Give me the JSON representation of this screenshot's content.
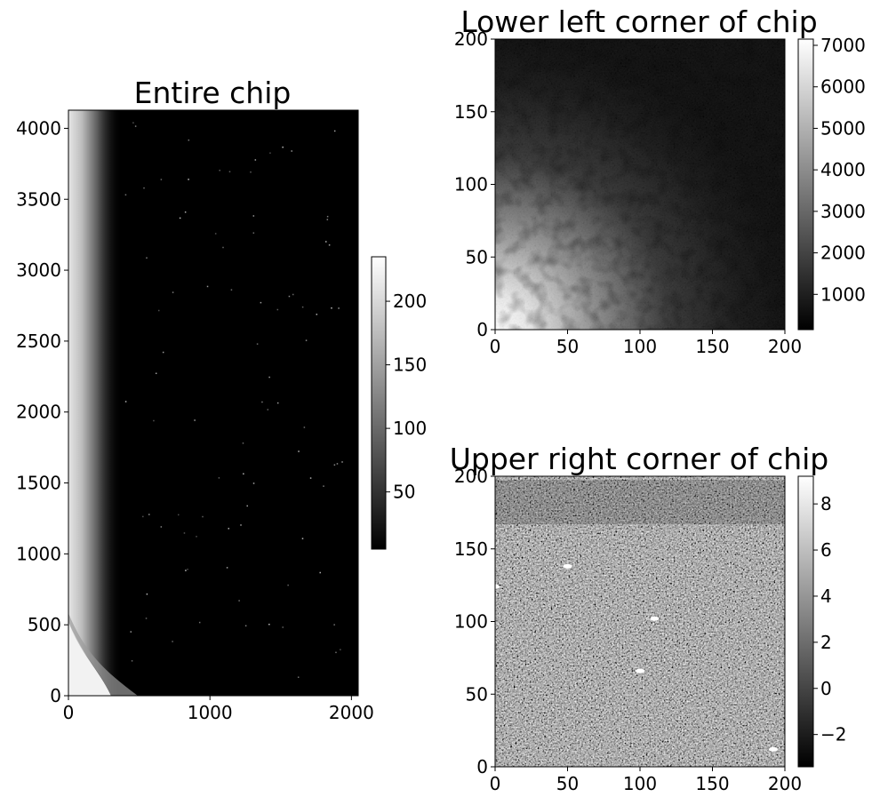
{
  "chart_data": [
    {
      "type": "heatmap",
      "title": "Entire chip",
      "colormap": "gray",
      "xlim": [
        0,
        2048
      ],
      "ylim": [
        0,
        4128
      ],
      "xticks": [
        0,
        1000,
        2000
      ],
      "xtick_labels": [
        "0",
        "1000",
        "2000"
      ],
      "yticks": [
        0,
        500,
        1000,
        1500,
        2000,
        2500,
        3000,
        3500,
        4000
      ],
      "ytick_labels": [
        "0",
        "500",
        "1000",
        "1500",
        "2000",
        "2500",
        "3000",
        "3500",
        "4000"
      ],
      "colorbar": {
        "range": [
          5,
          235
        ],
        "ticks": [
          50,
          100,
          150,
          200
        ],
        "tick_labels": [
          "50",
          "100",
          "150",
          "200"
        ]
      },
      "features": {
        "bright_left_edge_width": 130,
        "bright_corner_extent": [
          260,
          420
        ]
      }
    },
    {
      "type": "heatmap",
      "title": "Lower left corner of chip",
      "colormap": "gray",
      "xlim": [
        0,
        200
      ],
      "ylim": [
        0,
        200
      ],
      "xticks": [
        0,
        50,
        100,
        150,
        200
      ],
      "xtick_labels": [
        "0",
        "50",
        "100",
        "150",
        "200"
      ],
      "yticks": [
        0,
        50,
        100,
        150,
        200
      ],
      "ytick_labels": [
        "0",
        "50",
        "100",
        "150",
        "200"
      ],
      "colorbar": {
        "range": [
          150,
          7150
        ],
        "ticks": [
          1000,
          2000,
          3000,
          4000,
          5000,
          6000,
          7000
        ],
        "tick_labels": [
          "1000",
          "2000",
          "3000",
          "4000",
          "5000",
          "6000",
          "7000"
        ]
      }
    },
    {
      "type": "heatmap",
      "title": "Upper right corner of chip",
      "colormap": "gray",
      "xlim": [
        0,
        200
      ],
      "ylim": [
        0,
        200
      ],
      "xticks": [
        0,
        50,
        100,
        150,
        200
      ],
      "xtick_labels": [
        "0",
        "50",
        "100",
        "150",
        "200"
      ],
      "yticks": [
        0,
        50,
        100,
        150,
        200
      ],
      "ytick_labels": [
        "0",
        "50",
        "100",
        "150",
        "200"
      ],
      "colorbar": {
        "range": [
          -3.4,
          9.2
        ],
        "ticks": [
          -2,
          0,
          2,
          4,
          6,
          8
        ],
        "tick_labels": [
          "−2",
          "0",
          "2",
          "4",
          "6",
          "8"
        ]
      },
      "bright_spots": [
        [
          50,
          138
        ],
        [
          0,
          124
        ],
        [
          110,
          102
        ],
        [
          100,
          66
        ],
        [
          192,
          12
        ]
      ]
    }
  ]
}
